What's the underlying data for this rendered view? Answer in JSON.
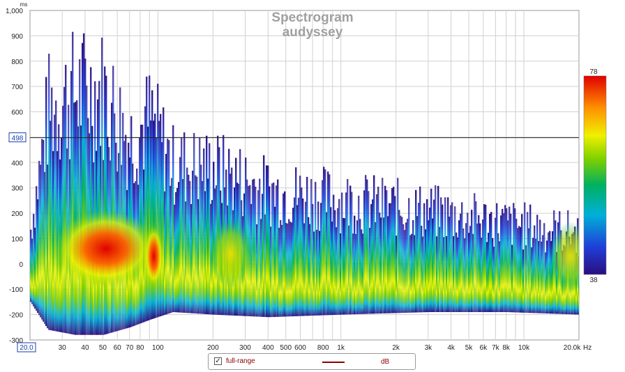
{
  "chart_data": {
    "type": "heatmap",
    "title": "Spectrogram",
    "subtitle": "audyssey",
    "xlabel_unit": "Hz",
    "ylabel_unit": "ms",
    "x_scale": "log",
    "xlim": [
      20,
      20000
    ],
    "ylim": [
      -300,
      1000
    ],
    "x_ticks": [
      {
        "value": 30,
        "label": "30"
      },
      {
        "value": 40,
        "label": "40"
      },
      {
        "value": 50,
        "label": "50"
      },
      {
        "value": 60,
        "label": "60"
      },
      {
        "value": 70,
        "label": "70"
      },
      {
        "value": 80,
        "label": "80"
      },
      {
        "value": 100,
        "label": "100"
      },
      {
        "value": 200,
        "label": "200"
      },
      {
        "value": 300,
        "label": "300"
      },
      {
        "value": 400,
        "label": "400"
      },
      {
        "value": 500,
        "label": "500"
      },
      {
        "value": 600,
        "label": "600"
      },
      {
        "value": 800,
        "label": "800"
      },
      {
        "value": 1000,
        "label": "1k"
      },
      {
        "value": 2000,
        "label": "2k"
      },
      {
        "value": 3000,
        "label": "3k"
      },
      {
        "value": 4000,
        "label": "4k"
      },
      {
        "value": 5000,
        "label": "5k"
      },
      {
        "value": 6000,
        "label": "6k"
      },
      {
        "value": 7000,
        "label": "7k"
      },
      {
        "value": 8000,
        "label": "8k"
      },
      {
        "value": 10000,
        "label": "10k"
      },
      {
        "value": 20000,
        "label": "20.0k"
      }
    ],
    "x_left_label": "20.0",
    "y_ticks": [
      {
        "value": 1000,
        "label": "1,000"
      },
      {
        "value": 900,
        "label": "900"
      },
      {
        "value": 800,
        "label": "800"
      },
      {
        "value": 700,
        "label": "700"
      },
      {
        "value": 600,
        "label": "600"
      },
      {
        "value": 500,
        "label": ""
      },
      {
        "value": 400,
        "label": "400"
      },
      {
        "value": 300,
        "label": "300"
      },
      {
        "value": 200,
        "label": "200"
      },
      {
        "value": 100,
        "label": "100"
      },
      {
        "value": 0,
        "label": "0"
      },
      {
        "value": -100,
        "label": "-100"
      },
      {
        "value": -200,
        "label": "-200"
      },
      {
        "value": -300,
        "label": "-300"
      }
    ],
    "cursor": {
      "value": 498,
      "label": "498"
    },
    "colorbar": {
      "min": 38,
      "max": 78,
      "min_label": "38",
      "max_label": "78"
    },
    "colors": {
      "scale": [
        "#2a0e80",
        "#1f3fd8",
        "#00b0d8",
        "#00b060",
        "#7cd000",
        "#f0f000",
        "#ff9000",
        "#ff2000",
        "#e00000"
      ],
      "cursor": "#202020",
      "grid": "#d0d0d0",
      "axis_text": "#222222",
      "title": "#a0a0a0",
      "accent": "#1a3fae"
    },
    "grid": true,
    "envelope": [
      {
        "x": 20,
        "top": 220,
        "bottom": -150
      },
      {
        "x": 25,
        "top": 850,
        "bottom": -260
      },
      {
        "x": 35,
        "top": 950,
        "bottom": -280
      },
      {
        "x": 50,
        "top": 950,
        "bottom": -280
      },
      {
        "x": 70,
        "top": 700,
        "bottom": -250
      },
      {
        "x": 90,
        "top": 800,
        "bottom": -220
      },
      {
        "x": 120,
        "top": 560,
        "bottom": -190
      },
      {
        "x": 200,
        "top": 540,
        "bottom": -200
      },
      {
        "x": 400,
        "top": 430,
        "bottom": -210
      },
      {
        "x": 1000,
        "top": 380,
        "bottom": -200
      },
      {
        "x": 3000,
        "top": 320,
        "bottom": -190
      },
      {
        "x": 8000,
        "top": 260,
        "bottom": -190
      },
      {
        "x": 20000,
        "top": 210,
        "bottom": -200
      }
    ],
    "hot_regions": [
      {
        "x": 52,
        "t": 60,
        "level": 78
      },
      {
        "x": 95,
        "t": 30,
        "level": 74
      },
      {
        "x": 250,
        "t": 40,
        "level": 66
      },
      {
        "x": 18000,
        "t": 30,
        "level": 64
      }
    ]
  },
  "legend": {
    "checked": "✓",
    "name": "full-range",
    "unit": "dB"
  }
}
